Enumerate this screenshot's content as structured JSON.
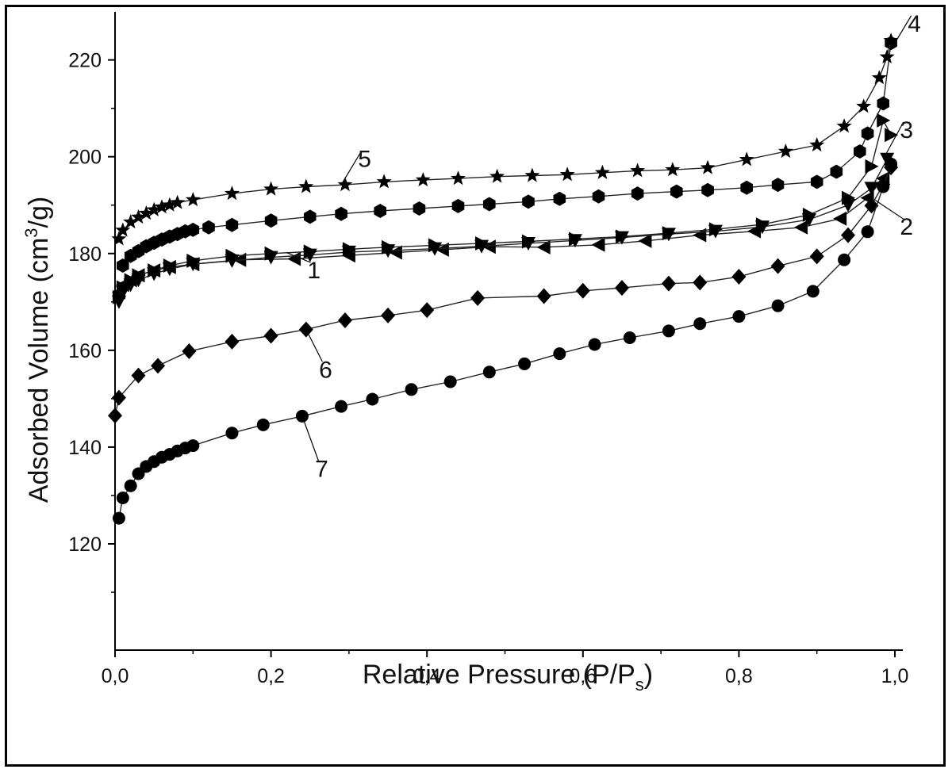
{
  "chart_data": {
    "type": "scatter",
    "xlabel": "Relative Pressure (P/P",
    "xlabel_sub": "s",
    "xlabel_tail": ")",
    "ylabel": "Adsorbed Volume (cm",
    "ylabel_sup": "3",
    "ylabel_tail": "/g)",
    "xlim": [
      0.0,
      1.0
    ],
    "ylim": [
      110,
      230
    ],
    "x_ticks": [
      0.0,
      0.2,
      0.4,
      0.6,
      0.8,
      1.0
    ],
    "x_tick_labels": [
      "0,0",
      "0,2",
      "0,4",
      "0,6",
      "0,8",
      "1,0"
    ],
    "y_ticks": [
      120,
      140,
      160,
      180,
      200,
      220
    ],
    "y_tick_labels": [
      "120",
      "140",
      "160",
      "180",
      "200",
      "220"
    ],
    "grid": false,
    "legend": "none",
    "series": [
      {
        "name": "1",
        "marker": "triangle-left",
        "x": [
          0.005,
          0.01,
          0.02,
          0.03,
          0.05,
          0.07,
          0.1,
          0.16,
          0.23,
          0.3,
          0.36,
          0.42,
          0.48,
          0.55,
          0.62,
          0.68,
          0.75,
          0.82,
          0.88,
          0.93,
          0.965,
          0.985
        ],
        "y": [
          172,
          173.5,
          174.5,
          175.5,
          176.5,
          177.2,
          177.8,
          178.7,
          178.9,
          179.6,
          180.2,
          180.8,
          181.4,
          181.3,
          181.8,
          182.6,
          183.8,
          184.6,
          185.4,
          187.2,
          191.5,
          195.5
        ]
      },
      {
        "name": "2",
        "marker": "triangle-down",
        "x": [
          0.005,
          0.01,
          0.02,
          0.03,
          0.05,
          0.07,
          0.1,
          0.15,
          0.2,
          0.25,
          0.3,
          0.35,
          0.41,
          0.47,
          0.53,
          0.59,
          0.65,
          0.71,
          0.77,
          0.83,
          0.89,
          0.94,
          0.97,
          0.99
        ],
        "y": [
          170,
          172,
          173.5,
          174.5,
          175.8,
          176.8,
          177.8,
          178.5,
          179.2,
          179.7,
          180.3,
          180.6,
          181.0,
          181.5,
          182.1,
          182.7,
          183.3,
          184.0,
          184.6,
          185.5,
          187.0,
          190.0,
          193.5,
          199.5
        ]
      },
      {
        "name": "3",
        "marker": "triangle-right",
        "x": [
          0.005,
          0.01,
          0.02,
          0.03,
          0.05,
          0.07,
          0.1,
          0.15,
          0.2,
          0.25,
          0.3,
          0.35,
          0.41,
          0.47,
          0.53,
          0.59,
          0.65,
          0.71,
          0.77,
          0.83,
          0.89,
          0.94,
          0.97,
          0.985,
          0.995
        ],
        "y": [
          171,
          173,
          174.5,
          175.5,
          176.5,
          177.5,
          178.5,
          179.5,
          180.0,
          180.4,
          180.9,
          181.3,
          181.7,
          182.1,
          182.5,
          183.0,
          183.5,
          184.2,
          185.0,
          186.0,
          188.0,
          191.5,
          198.0,
          207.5,
          204.5
        ]
      },
      {
        "name": "4",
        "marker": "hexagon",
        "x": [
          0.01,
          0.02,
          0.03,
          0.04,
          0.05,
          0.06,
          0.07,
          0.08,
          0.09,
          0.1,
          0.12,
          0.15,
          0.2,
          0.25,
          0.29,
          0.34,
          0.39,
          0.44,
          0.48,
          0.53,
          0.57,
          0.62,
          0.67,
          0.72,
          0.76,
          0.81,
          0.85,
          0.9,
          0.925,
          0.955,
          0.965,
          0.985,
          0.995
        ],
        "y": [
          177.5,
          179.5,
          180.5,
          181.5,
          182.2,
          182.9,
          183.5,
          184.0,
          184.6,
          184.9,
          185.4,
          185.9,
          186.8,
          187.6,
          188.2,
          188.8,
          189.3,
          189.8,
          190.2,
          190.7,
          191.3,
          191.8,
          192.4,
          192.8,
          193.1,
          193.6,
          194.2,
          194.8,
          196.9,
          201.1,
          204.8,
          211.0,
          223.5
        ]
      },
      {
        "name": "5",
        "marker": "star",
        "x": [
          0.005,
          0.01,
          0.02,
          0.03,
          0.04,
          0.05,
          0.06,
          0.07,
          0.08,
          0.1,
          0.15,
          0.2,
          0.245,
          0.295,
          0.345,
          0.395,
          0.44,
          0.49,
          0.535,
          0.58,
          0.625,
          0.67,
          0.715,
          0.76,
          0.81,
          0.86,
          0.9,
          0.935,
          0.96,
          0.98,
          0.99,
          0.995
        ],
        "y": [
          183,
          184.8,
          186.5,
          187.5,
          188.3,
          189.0,
          189.6,
          190.0,
          190.5,
          191.1,
          192.4,
          193.3,
          193.8,
          194.2,
          194.8,
          195.2,
          195.5,
          195.9,
          196.1,
          196.3,
          196.7,
          197.1,
          197.3,
          197.7,
          199.4,
          201.1,
          202.4,
          206.3,
          210.4,
          216.3,
          220.6,
          224.0
        ]
      },
      {
        "name": "6",
        "marker": "diamond",
        "x": [
          0.0,
          0.005,
          0.03,
          0.055,
          0.095,
          0.15,
          0.2,
          0.245,
          0.295,
          0.35,
          0.4,
          0.465,
          0.55,
          0.6,
          0.65,
          0.71,
          0.75,
          0.8,
          0.85,
          0.9,
          0.94,
          0.97,
          0.985,
          0.995
        ],
        "y": [
          146.5,
          150.2,
          154.8,
          156.8,
          159.8,
          161.8,
          163.0,
          164.3,
          166.2,
          167.2,
          168.3,
          170.8,
          171.2,
          172.3,
          172.9,
          173.8,
          174.0,
          175.2,
          177.4,
          179.4,
          183.8,
          189.9,
          194.3,
          197.8
        ]
      },
      {
        "name": "7",
        "marker": "circle",
        "x": [
          0.005,
          0.01,
          0.02,
          0.03,
          0.04,
          0.05,
          0.06,
          0.07,
          0.08,
          0.09,
          0.1,
          0.15,
          0.19,
          0.24,
          0.29,
          0.33,
          0.38,
          0.43,
          0.48,
          0.525,
          0.57,
          0.615,
          0.66,
          0.71,
          0.75,
          0.8,
          0.85,
          0.895,
          0.935,
          0.965,
          0.985,
          0.995
        ],
        "y": [
          125.3,
          129.5,
          132.0,
          134.5,
          136.0,
          137.0,
          137.9,
          138.5,
          139.2,
          139.8,
          140.3,
          142.9,
          144.6,
          146.4,
          148.4,
          149.9,
          151.9,
          153.5,
          155.5,
          157.2,
          159.3,
          161.2,
          162.6,
          164.0,
          165.5,
          167.0,
          169.2,
          172.2,
          178.7,
          184.5,
          193.8,
          198.5
        ]
      }
    ],
    "curve_labels": [
      {
        "text": "1",
        "x": 0.255,
        "y": 176.5,
        "leader_to": [
          0.22,
          180.2
        ]
      },
      {
        "text": "2",
        "x": 1.015,
        "y": 185.5,
        "leader_to": [
          0.975,
          191.0
        ]
      },
      {
        "text": "3",
        "x": 1.015,
        "y": 205.5,
        "leader_to": [
          0.985,
          199.5
        ]
      },
      {
        "text": "4",
        "x": 1.025,
        "y": 227.5,
        "leader_to": [
          1.0,
          223.5
        ]
      },
      {
        "text": "5",
        "x": 0.32,
        "y": 199.5,
        "leader_to": [
          0.29,
          194.2
        ]
      },
      {
        "text": "6",
        "x": 0.27,
        "y": 156.0,
        "leader_to": [
          0.245,
          164.3
        ]
      },
      {
        "text": "7",
        "x": 0.265,
        "y": 135.5,
        "leader_to": [
          0.24,
          146.4
        ]
      }
    ]
  }
}
